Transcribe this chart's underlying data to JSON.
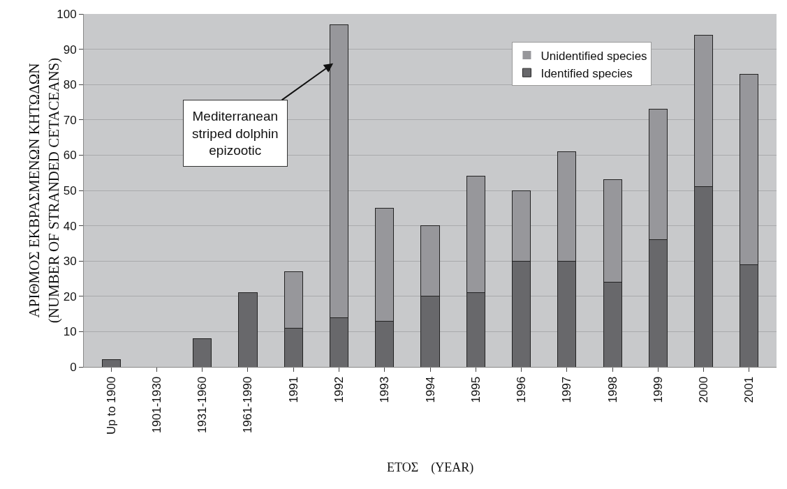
{
  "chart_data": {
    "type": "bar",
    "stacked": true,
    "xlabel": "ΕΤΟΣ    (YEAR)",
    "ylabel": "ΑΡΙΘΜΟΣ ΕΚΒΡΑΣΜΕΝΩΝ ΚΗΤΩΔΩΝ\n(NUMBER OF STRANDED CETACEANS)",
    "categories": [
      "Up to 1900",
      "1901-1930",
      "1931-1960",
      "1961-1990",
      "1991",
      "1992",
      "1993",
      "1994",
      "1995",
      "1996",
      "1997",
      "1998",
      "1999",
      "2000",
      "2001"
    ],
    "series": [
      {
        "name": "Identified species",
        "color": "#68686b",
        "values": [
          2,
          0,
          8,
          21,
          11,
          14,
          13,
          20,
          21,
          30,
          30,
          24,
          36,
          51,
          29
        ]
      },
      {
        "name": "Unidentified species",
        "color": "#97979b",
        "values": [
          0,
          0,
          0,
          0,
          16,
          83,
          32,
          20,
          33,
          20,
          31,
          29,
          37,
          43,
          54
        ]
      }
    ],
    "ylim": [
      0,
      100
    ],
    "yticks": [
      0,
      10,
      20,
      30,
      40,
      50,
      60,
      70,
      80,
      90,
      100
    ],
    "grid": "y",
    "legend": "top right",
    "annotations": [
      "Mediterranean\nstriped dolphin\nepizootic"
    ]
  }
}
